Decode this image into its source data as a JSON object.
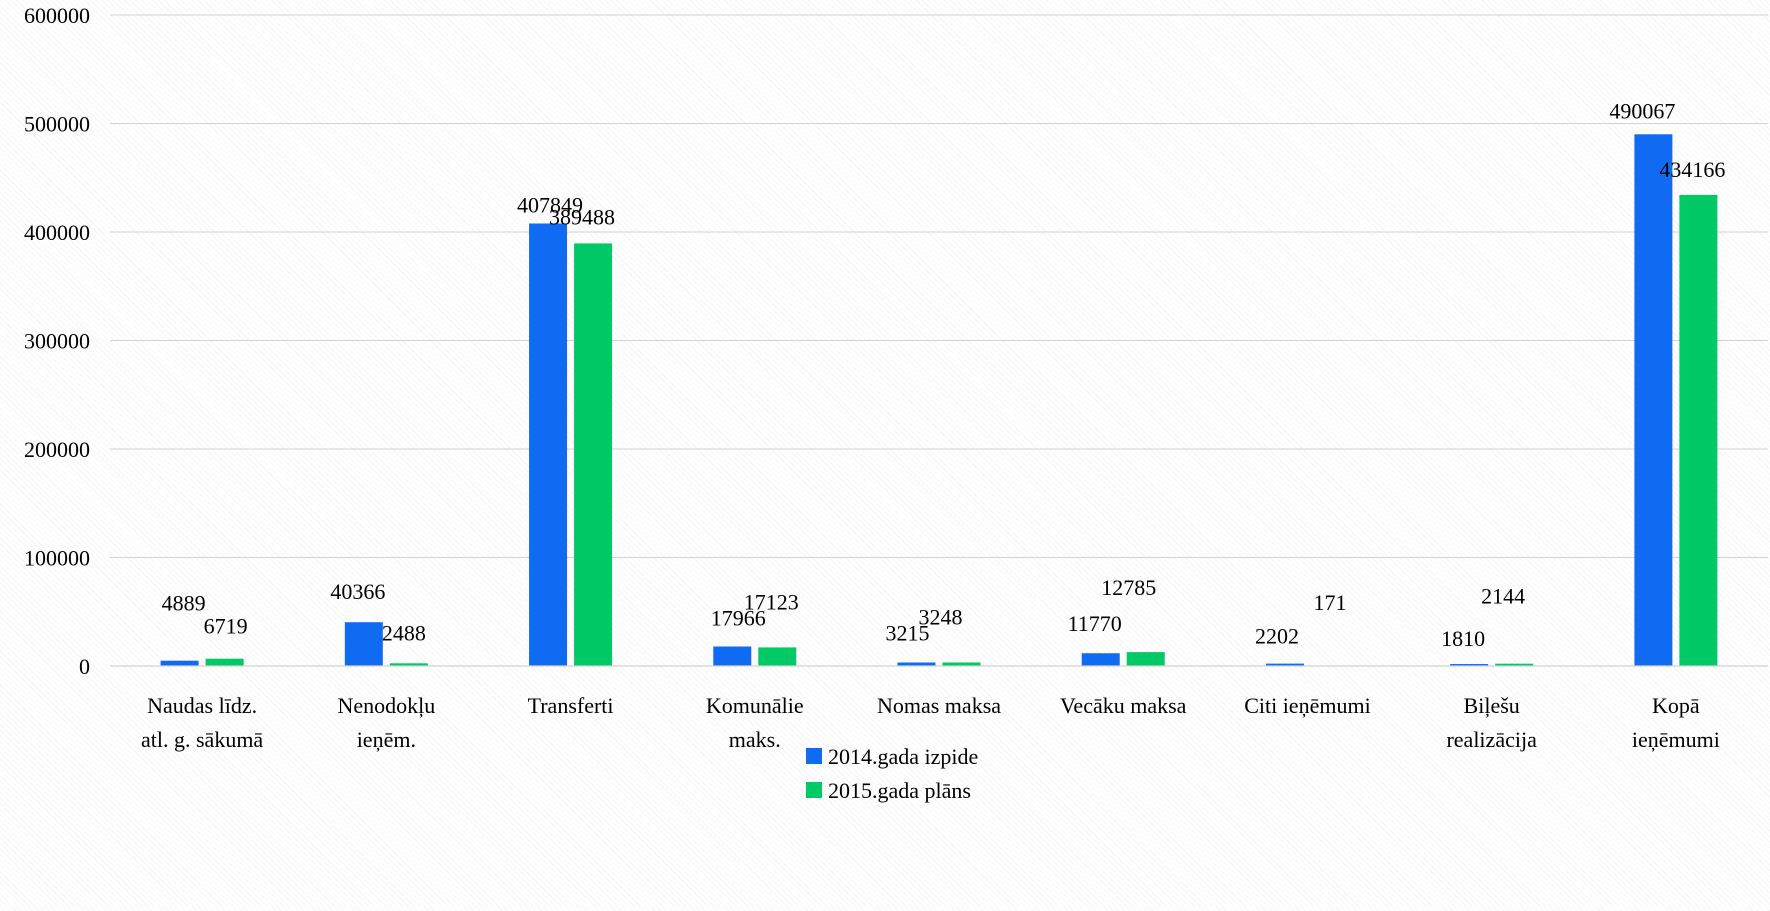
{
  "chart_data": {
    "type": "bar",
    "title": "",
    "xlabel": "",
    "ylabel": "",
    "ylim": [
      0,
      600000
    ],
    "yticks": [
      "0",
      "100000",
      "200000",
      "300000",
      "400000",
      "500000",
      "600000"
    ],
    "grid": true,
    "legend_position": "bottom",
    "categories": [
      [
        "Naudas līdz.",
        "atl. g. sākumā"
      ],
      [
        "Nenodokļu",
        "ieņēm."
      ],
      [
        "Transferti"
      ],
      [
        "Komunālie",
        "maks."
      ],
      [
        "Nomas maksa"
      ],
      [
        "Vecāku maksa"
      ],
      [
        "Citi ieņēmumi"
      ],
      [
        "Biļešu",
        "realizācija"
      ],
      [
        "Kopā",
        "ieņēmumi"
      ]
    ],
    "series": [
      {
        "name": "2014.gada izpide",
        "color": "#0f6cf2",
        "values": [
          4889,
          40366,
          407849,
          17966,
          3215,
          11770,
          2202,
          1810,
          490067
        ],
        "labels": [
          "4889",
          "40366",
          "407849",
          "17966",
          "3215",
          "11770",
          "2202",
          "1810",
          "490067"
        ]
      },
      {
        "name": "2015.gada plāns",
        "color": "#00c965",
        "values": [
          6719,
          2488,
          389488,
          17123,
          3248,
          12785,
          171,
          2144,
          434166
        ],
        "labels": [
          "6719",
          "2488",
          "389488",
          "17123",
          "3248",
          "12785",
          "171",
          "2144",
          "434166"
        ]
      }
    ]
  }
}
